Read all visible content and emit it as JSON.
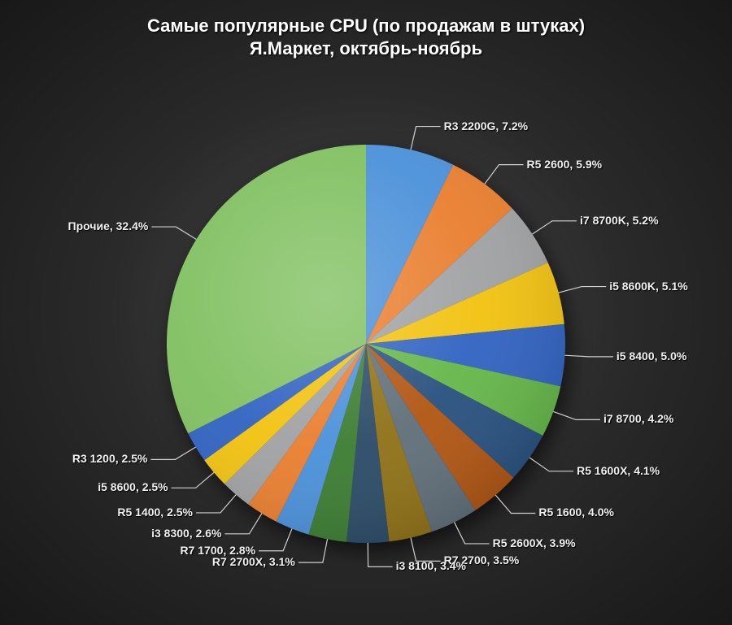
{
  "chart": {
    "type": "pie",
    "title_line1": "Самые популярные CPU (по продажам в штуках)",
    "title_line2": "Я.Маркет, октябрь-ноябрь",
    "title_fontsize": 22,
    "title_color": "#ffffff",
    "background": "radial-gradient(#4a4a4a, #181818)",
    "label_fontsize": 14,
    "label_color": "#f0f0f0",
    "pie_radius": 245,
    "inner_lighten": "#ffffff22",
    "start_angle_deg": 0,
    "slices": [
      {
        "name": "R3 2200G",
        "value": 7.2,
        "color": "#4a90d9"
      },
      {
        "name": "R5 2600",
        "value": 5.9,
        "color": "#e97e2e"
      },
      {
        "name": "i7 8700K",
        "value": 5.2,
        "color": "#9fa1a3"
      },
      {
        "name": "i5 8600K",
        "value": 5.1,
        "color": "#f2c20f"
      },
      {
        "name": "i5 8400",
        "value": 5.0,
        "color": "#3062c1"
      },
      {
        "name": "i7 8700",
        "value": 4.2,
        "color": "#64b648"
      },
      {
        "name": "R5 1600X",
        "value": 4.1,
        "color": "#27507e"
      },
      {
        "name": "R5 1600",
        "value": 4.0,
        "color": "#b05512"
      },
      {
        "name": "R5 2600X",
        "value": 3.9,
        "color": "#5f6e78"
      },
      {
        "name": "R7 2700",
        "value": 3.5,
        "color": "#8e7015"
      },
      {
        "name": "i3 8100",
        "value": 3.4,
        "color": "#2a4a66"
      },
      {
        "name": "R7 2700X",
        "value": 3.1,
        "color": "#3b7c31"
      },
      {
        "name": "R7 1700",
        "value": 2.8,
        "color": "#4a90d9"
      },
      {
        "name": "i3 8300",
        "value": 2.6,
        "color": "#e97e2e"
      },
      {
        "name": "R5 1400",
        "value": 2.5,
        "color": "#9fa1a3"
      },
      {
        "name": "i5 8600",
        "value": 2.5,
        "color": "#f2c20f"
      },
      {
        "name": "R3 1200",
        "value": 2.5,
        "color": "#3062c1"
      },
      {
        "name": "Прочие",
        "value": 32.4,
        "color": "#80c060"
      }
    ]
  }
}
